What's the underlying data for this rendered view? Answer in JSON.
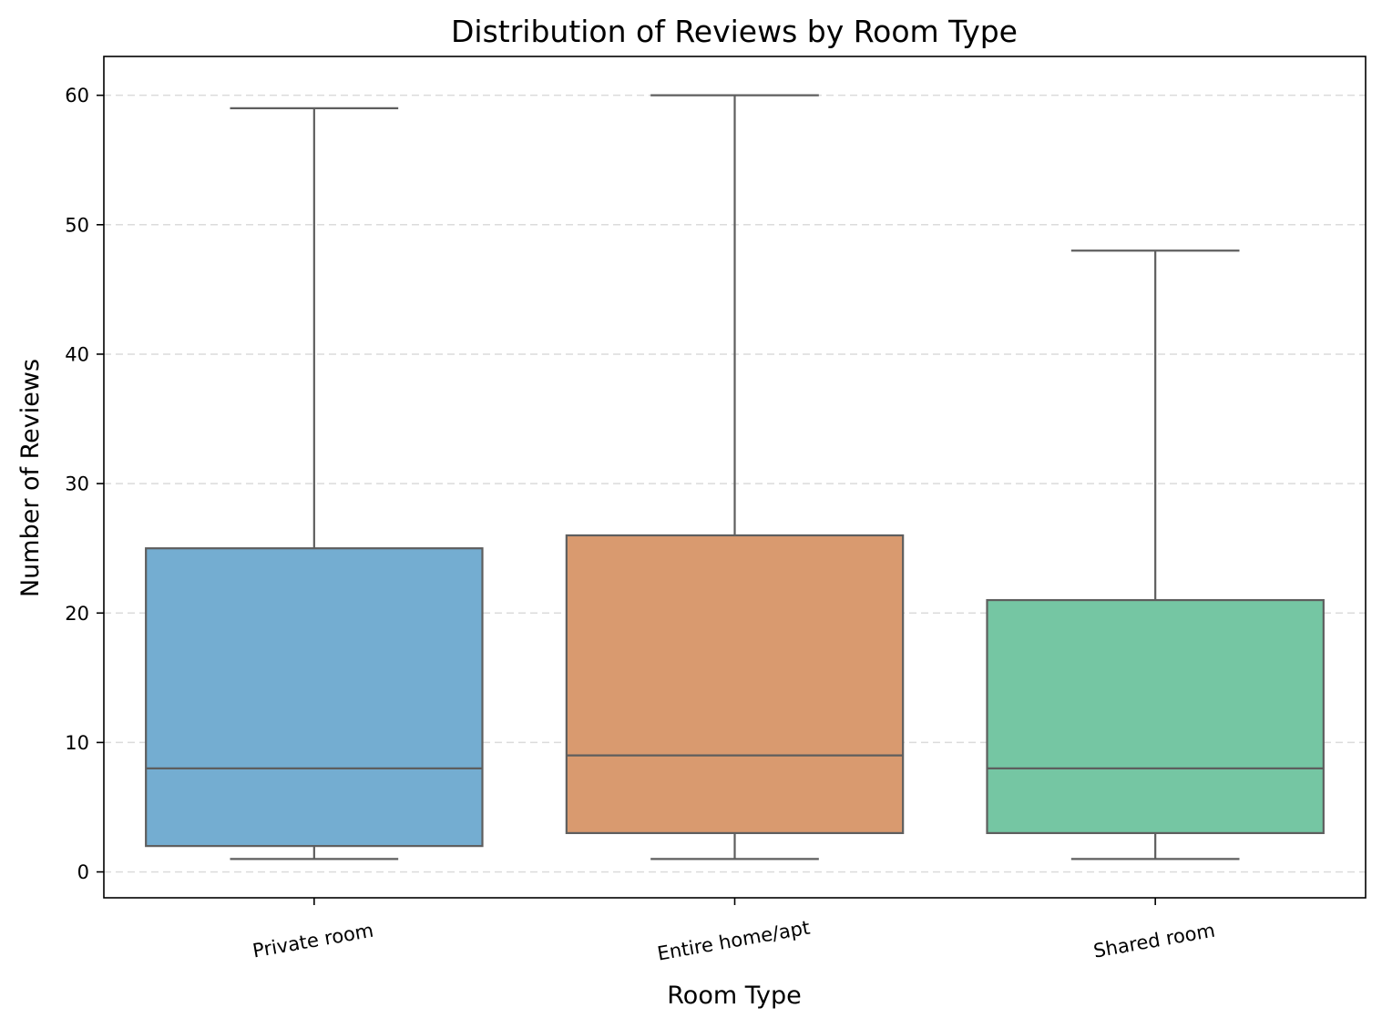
{
  "chart_data": {
    "type": "box",
    "title": "Distribution of Reviews by Room Type",
    "xlabel": "Room Type",
    "ylabel": "Number of Reviews",
    "ylim": [
      -2,
      63
    ],
    "yticks": [
      0,
      10,
      20,
      30,
      40,
      50,
      60
    ],
    "ytick_labels": [
      "0",
      "10",
      "20",
      "30",
      "40",
      "50",
      "60"
    ],
    "grid": "y-dashed",
    "categories": [
      "Private room",
      "Entire home/apt",
      "Shared room"
    ],
    "series": [
      {
        "category": "Private room",
        "whisker_low": 1,
        "q1": 2,
        "median": 8,
        "q3": 25,
        "whisker_high": 59,
        "color": "#74add1"
      },
      {
        "category": "Entire home/apt",
        "whisker_low": 1,
        "q1": 3,
        "median": 9,
        "q3": 26,
        "whisker_high": 60,
        "color": "#d99a6f"
      },
      {
        "category": "Shared room",
        "whisker_low": 1,
        "q1": 3,
        "median": 8,
        "q3": 21,
        "whisker_high": 48,
        "color": "#75c6a3"
      }
    ],
    "line_color": "#5e5e5e"
  }
}
